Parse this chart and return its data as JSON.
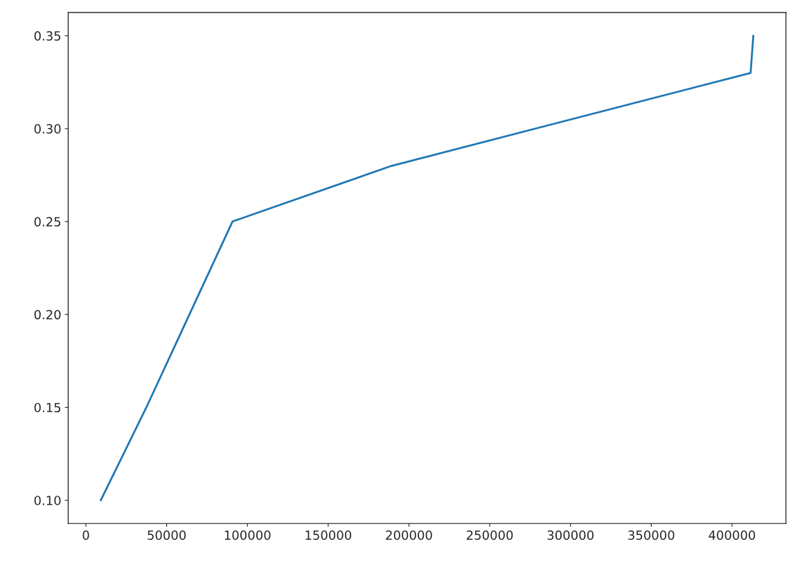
{
  "chart_data": {
    "type": "line",
    "x": [
      9225,
      37450,
      90750,
      189300,
      411500,
      413200
    ],
    "series": [
      {
        "color": "#1f77b4",
        "values": [
          0.1,
          0.15,
          0.25,
          0.28,
          0.33,
          0.35
        ]
      }
    ],
    "xlim": [
      -10974,
      433399
    ],
    "ylim": [
      0.0875,
      0.3625
    ],
    "xticks": [
      0,
      50000,
      100000,
      150000,
      200000,
      250000,
      300000,
      350000,
      400000
    ],
    "yticks": [
      {
        "value": 0.1,
        "label": "0.10"
      },
      {
        "value": 0.15,
        "label": "0.15"
      },
      {
        "value": 0.2,
        "label": "0.20"
      },
      {
        "value": 0.25,
        "label": "0.25"
      },
      {
        "value": 0.3,
        "label": "0.30"
      },
      {
        "value": 0.35,
        "label": "0.35"
      }
    ],
    "grid": false,
    "legend": false
  }
}
